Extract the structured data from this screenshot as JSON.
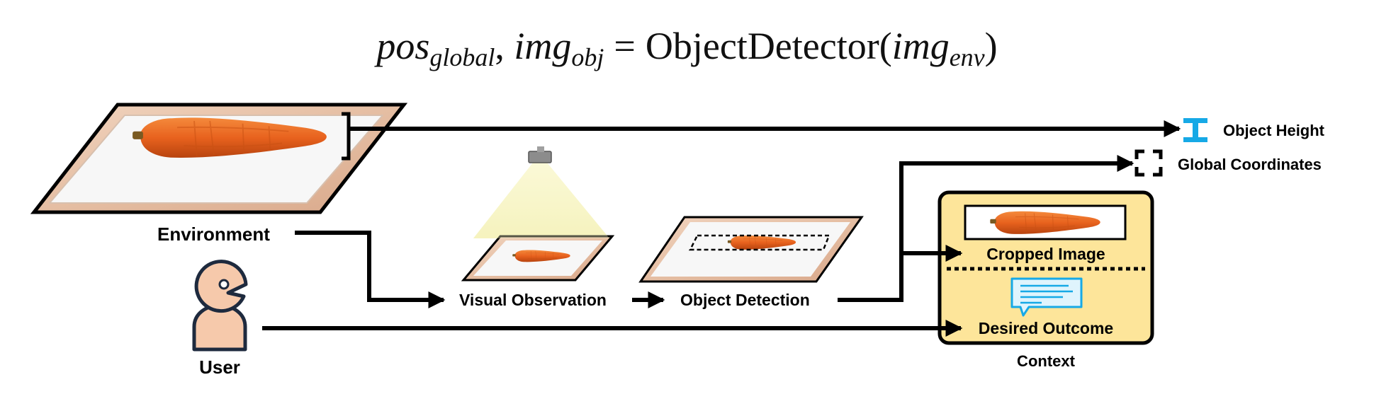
{
  "equation": {
    "lhs1": "pos",
    "lhs1_sub": "global",
    "separator": ",",
    "lhs2": "img",
    "lhs2_sub": "obj",
    "equals": "=",
    "func": "ObjectDetector",
    "arg": "img",
    "arg_sub": "env"
  },
  "labels": {
    "environment": "Environment",
    "user": "User",
    "visual_observation": "Visual Observation",
    "object_detection": "Object Detection",
    "cropped_image": "Cropped Image",
    "desired_outcome": "Desired Outcome",
    "context": "Context",
    "object_height": "Object Height",
    "global_coordinates": "Global Coordinates"
  },
  "icons": {
    "carrot": "carrot-icon",
    "camera": "camera-icon",
    "user": "user-icon",
    "height": "object-height-icon",
    "coordinates": "global-coordinates-icon",
    "message": "message-icon"
  },
  "colors": {
    "carrot": "#e8621e",
    "tray_wood": "#e8c6ad",
    "tray_inner": "#f6f6f6",
    "camera_beam": "#f8f6c9",
    "user_skin": "#f6c9ab",
    "user_outline": "#1e2a3e",
    "context_fill": "#fde59a",
    "icon_blue": "#16a9e6",
    "line": "#000000"
  }
}
